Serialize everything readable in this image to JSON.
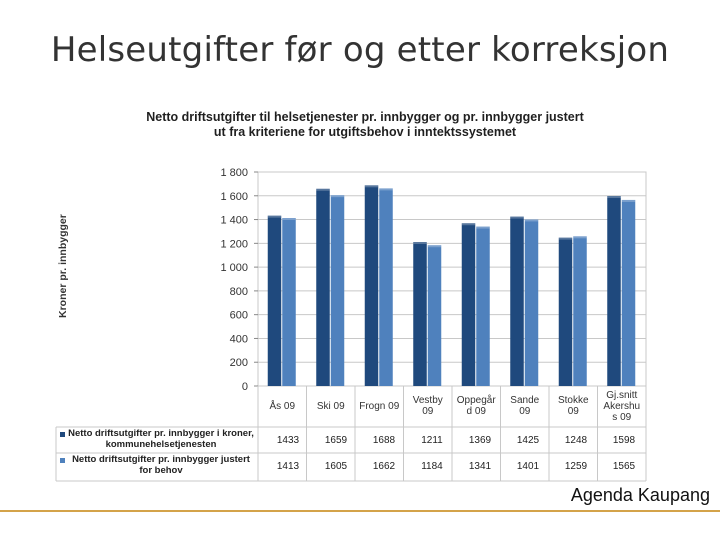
{
  "slide": {
    "title": "Helseutgifter før og etter korreksjon",
    "footer": "Agenda Kaupang"
  },
  "colors": {
    "series1": "#1f497d",
    "series2": "#4f81bd",
    "grid": "#c8c8c8",
    "footer_line": "#d4a34a"
  },
  "chart_data": {
    "type": "bar",
    "title_lines": [
      "Netto driftsutgifter til helsetjenester pr. innbygger og pr. innbygger justert",
      "ut fra kriteriene for utgiftsbehov i inntektssystemet"
    ],
    "ylabel": "Kroner pr. innbygger",
    "xlabel": "",
    "ylim": [
      0,
      1800
    ],
    "yticks": [
      "0",
      "200",
      "400",
      "600",
      "800",
      "1 000",
      "1 200",
      "1 400",
      "1 600",
      "1 800"
    ],
    "ytick_values": [
      0,
      200,
      400,
      600,
      800,
      1000,
      1200,
      1400,
      1600,
      1800
    ],
    "grid": true,
    "legend": "bottom-table",
    "categories": [
      [
        "Ås 09"
      ],
      [
        "Ski 09"
      ],
      [
        "Frogn 09"
      ],
      [
        "Vestby",
        "09"
      ],
      [
        "Oppegår",
        "d 09"
      ],
      [
        "Sande",
        "09"
      ],
      [
        "Stokke",
        "09"
      ],
      [
        "Gj.snitt",
        "Akershu",
        "s 09"
      ]
    ],
    "series": [
      {
        "name": "Netto driftsutgifter pr. innbygger i kroner, kommunehelsetjenesten",
        "values": [
          1433,
          1659,
          1688,
          1211,
          1369,
          1425,
          1248,
          1598
        ],
        "labels": [
          "1433",
          "1659",
          "1688",
          "1211",
          "1369",
          "1425",
          "1248",
          "1598"
        ]
      },
      {
        "name": "Netto driftsutgifter pr. innbygger justert for behov",
        "values": [
          1413,
          1605,
          1662,
          1184,
          1341,
          1401,
          1259,
          1565
        ],
        "labels": [
          "1413",
          "1605",
          "1662",
          "1184",
          "1341",
          "1401",
          "1259",
          "1565"
        ]
      }
    ]
  }
}
